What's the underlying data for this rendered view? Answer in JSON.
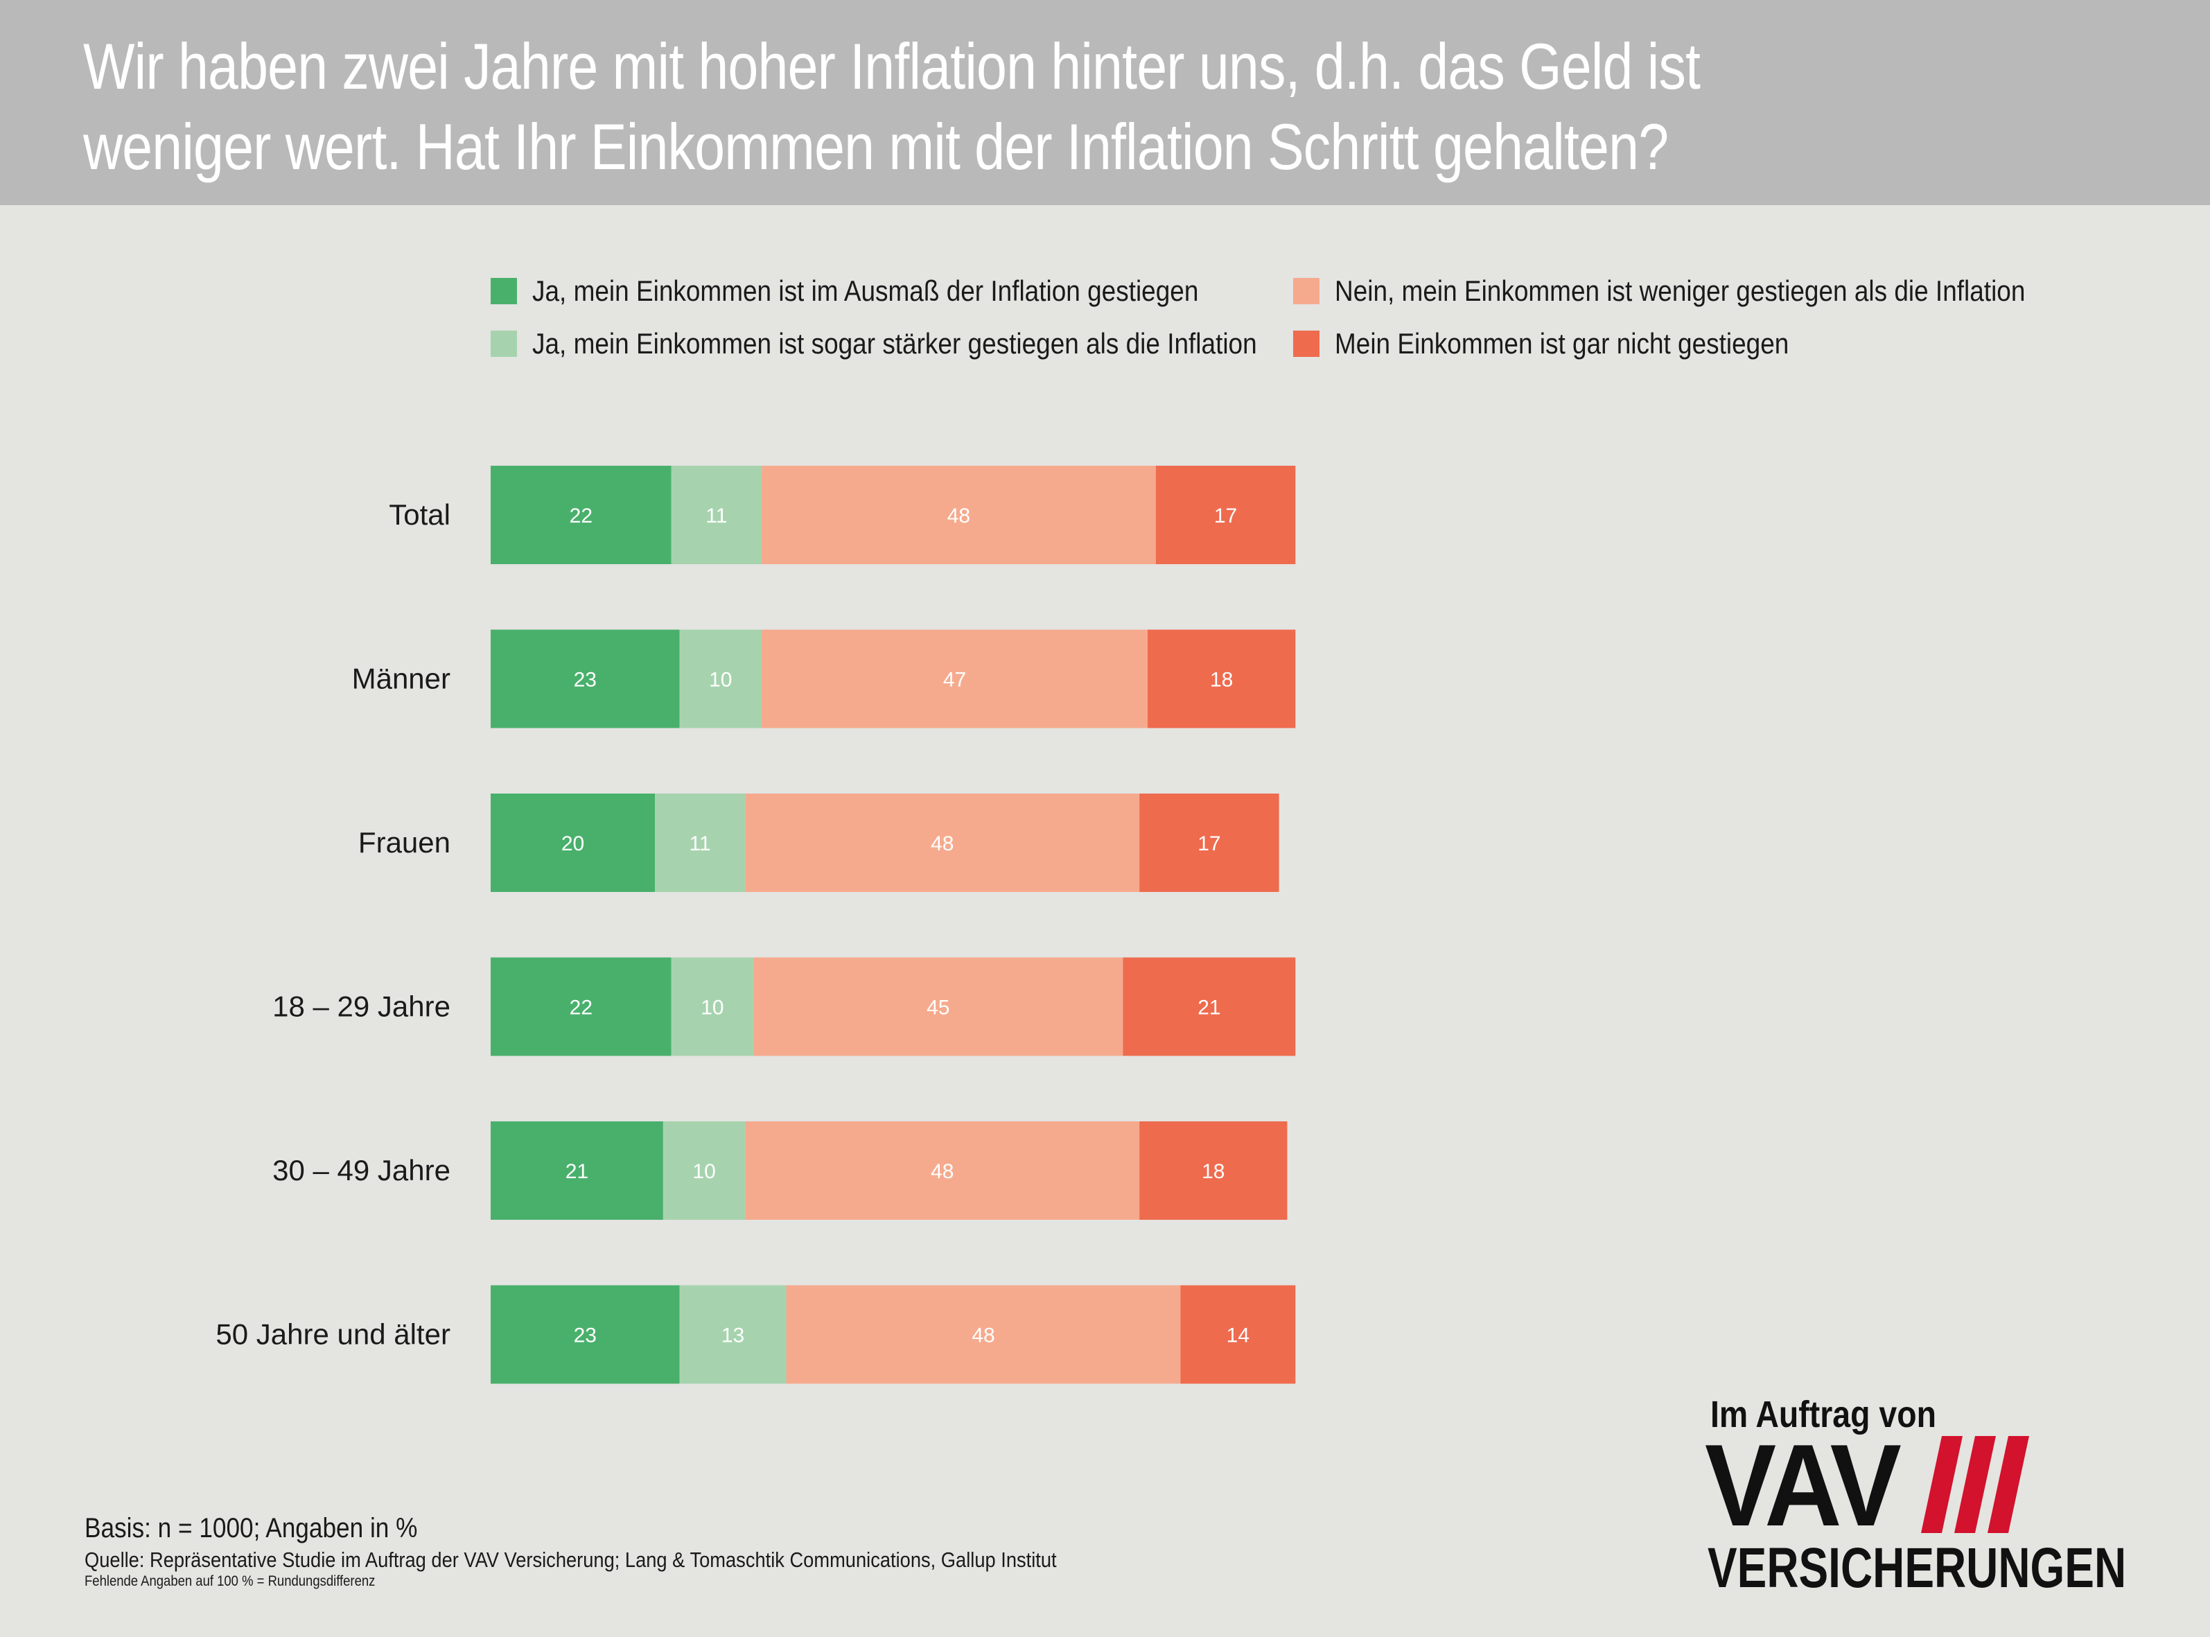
{
  "title": "Wir haben zwei Jahre mit hoher Inflation hinter uns, d.h. das Geld ist weniger wert. Hat Ihr Einkommen mit der Inflation Schritt gehalten?",
  "title_line1": "Wir haben zwei Jahre mit hoher Inflation hinter uns, d.h. das Geld ist",
  "title_line2": "weniger wert. Hat Ihr Einkommen mit der Inflation Schritt gehalten?",
  "colors": {
    "header_bg": "#b9b9b9",
    "page_bg": "#e4e4e1",
    "dark_green": "#49b06c",
    "light_green": "#a6d3ae",
    "light_salmon": "#f6aa8d",
    "dark_salmon": "#ee6b4e",
    "logo_red": "#d3122d"
  },
  "chart_data": {
    "type": "bar",
    "orientation": "horizontal",
    "stacked": true,
    "categories": [
      "Total",
      "Männer",
      "Frauen",
      "18 – 29 Jahre",
      "30 – 49 Jahre",
      "50 Jahre und älter"
    ],
    "series": [
      {
        "name": "Ja, mein Einkommen ist im Ausmaß der Inflation gestiegen",
        "color": "#49b06c",
        "values": [
          22,
          23,
          20,
          22,
          21,
          23
        ]
      },
      {
        "name": "Ja, mein Einkommen ist sogar stärker gestiegen als die Inflation",
        "color": "#a6d3ae",
        "values": [
          11,
          10,
          11,
          10,
          10,
          13
        ]
      },
      {
        "name": "Nein, mein Einkommen ist weniger gestiegen als die Inflation",
        "color": "#f6aa8d",
        "values": [
          48,
          47,
          48,
          45,
          48,
          48
        ]
      },
      {
        "name": "Mein Einkommen ist gar nicht gestiegen",
        "color": "#ee6b4e",
        "values": [
          17,
          18,
          17,
          21,
          18,
          14
        ]
      }
    ],
    "xlim": [
      0,
      100
    ],
    "legend_position": "top",
    "grid": false,
    "data_labels": true
  },
  "footer": {
    "basis": "Basis: n = 1000; Angaben in %",
    "source": "Quelle: Repräsentative Studie im Auftrag der VAV Versicherung; Lang & Tomaschtik Communications, Gallup Institut",
    "note": "Fehlende Angaben auf 100 % = Rundungsdifferenz"
  },
  "logo": {
    "tagline": "Im Auftrag von",
    "name": "VAV",
    "subname": "VERSICHERUNGEN"
  }
}
